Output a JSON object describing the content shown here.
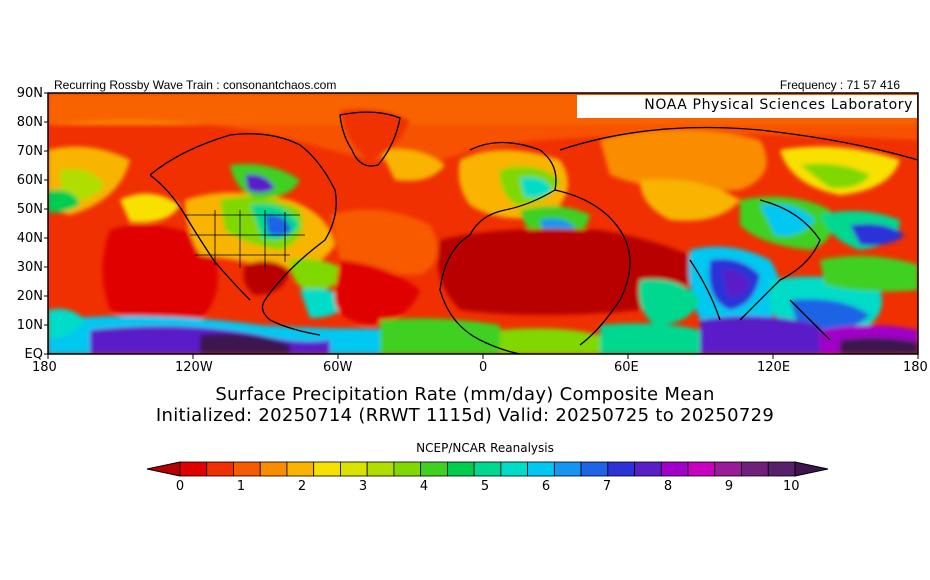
{
  "header": {
    "left": "Recurring Rossby Wave Train : consonantchaos.com",
    "right": "Frequency : 71 57 416"
  },
  "map": {
    "lab_label": "NOAA Physical Sciences Laboratory",
    "lat_labels": [
      "90N",
      "80N",
      "70N",
      "60N",
      "50N",
      "40N",
      "30N",
      "20N",
      "10N",
      "EQ"
    ],
    "lon_labels": [
      "180",
      "120W",
      "60W",
      "0",
      "60E",
      "120E",
      "180"
    ]
  },
  "title": {
    "line1": "Surface Precipitation Rate (mm/day) Composite Mean",
    "line2": "Initialized: 20250714 (RRWT 1115d) Valid: 20250725 to 20250729"
  },
  "source": "NCEP/NCAR Reanalysis",
  "colorbar": {
    "tick_labels": [
      "0",
      "1",
      "2",
      "3",
      "4",
      "5",
      "6",
      "7",
      "8",
      "9",
      "10"
    ],
    "colors": [
      "#e00000",
      "#f03000",
      "#f85a00",
      "#fa8c00",
      "#f8b400",
      "#f8e000",
      "#d8e400",
      "#b0de00",
      "#80d800",
      "#40d020",
      "#00cc50",
      "#00d890",
      "#00dcc8",
      "#00c8f0",
      "#1496f0",
      "#1e64e6",
      "#2c32d8",
      "#5a1ec8",
      "#a000c8",
      "#c800c0",
      "#9a1a9a",
      "#70207a",
      "#581f6a"
    ],
    "under_color": "#b80000",
    "over_color": "#3d1450"
  }
}
